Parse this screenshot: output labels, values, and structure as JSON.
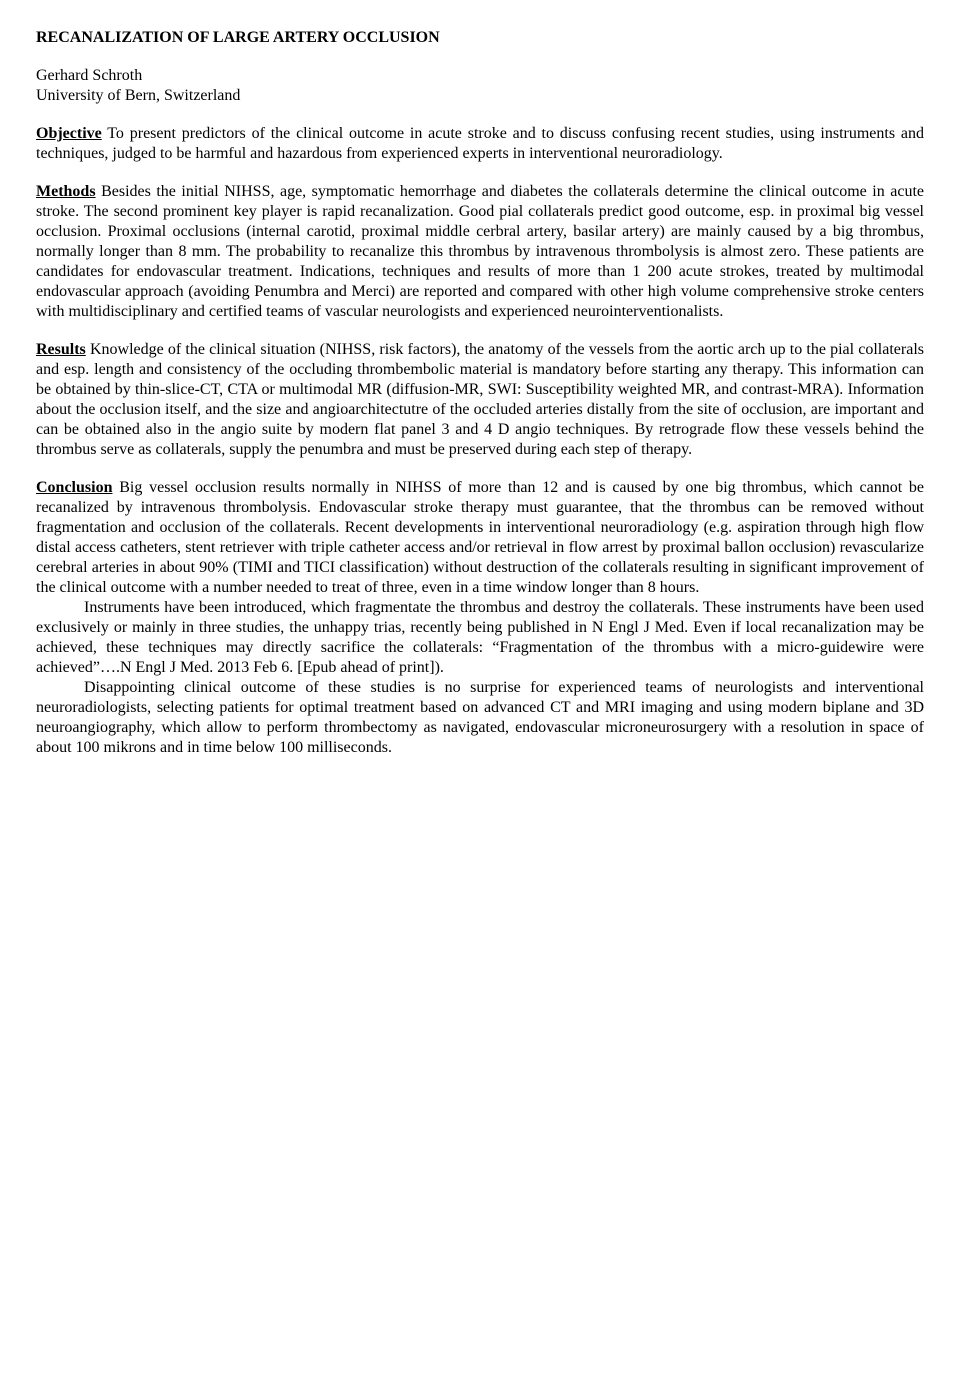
{
  "title": "RECANALIZATION OF LARGE ARTERY OCCLUSION",
  "author": "Gerhard Schroth",
  "affiliation": "University of Bern, Switzerland",
  "sections": {
    "objective": {
      "label": "Objective",
      "text": " To present predictors of the clinical outcome in acute stroke and to discuss confusing recent studies, using instruments and techniques, judged to be harmful and hazardous from experienced experts in interventional neuroradiology."
    },
    "methods": {
      "label": "Methods",
      "text": " Besides the initial NIHSS, age, symptomatic hemorrhage and diabetes the collaterals determine the clinical outcome in acute stroke. The second prominent key player is rapid recanalization. Good pial collaterals predict good outcome, esp. in proximal big vessel occlusion. Proximal occlusions (internal carotid, proximal middle cerbral artery, basilar artery) are mainly caused by a big thrombus, normally longer than 8 mm. The probability to recanalize this thrombus by intravenous thrombolysis is almost zero. These patients are candidates for endovascular treatment. Indications, techniques and results of more than 1 200 acute strokes, treated by multimodal endovascular approach (avoiding Penumbra and Merci) are reported and compared with other high volume comprehensive stroke centers with multidisciplinary and certified teams of vascular neurologists and experienced neurointerventionalists."
    },
    "results": {
      "label": "Results",
      "text": " Knowledge of the clinical situation (NIHSS, risk factors), the anatomy of the vessels from the aortic arch up to the pial collaterals and esp. length and consistency of the occluding thrombembolic material is mandatory before starting any therapy. This information can be obtained by thin-slice-CT, CTA or multimodal MR (diffusion-MR, SWI: Susceptibility weighted MR, and contrast-MRA). Information about the occlusion itself, and the size and angioarchitectutre of the occluded arteries distally from the site of occlusion, are important and can be obtained also in the angio suite by modern flat panel 3 and 4 D angio techniques. By retrograde flow these vessels behind the thrombus serve as collaterals, supply the penumbra and must be preserved during each step of therapy."
    },
    "conclusion": {
      "label": "Conclusion",
      "p1": " Big vessel occlusion results normally in NIHSS of more than 12 and is caused by one big thrombus, which cannot be recanalized by intravenous thrombolysis. Endovascular stroke therapy must guarantee, that the thrombus can be removed without fragmentation and occlusion of the collaterals. Recent developments in interventional neuroradiology (e.g. aspiration through high flow distal access catheters, stent retriever with triple catheter access and/or retrieval in flow arrest by proximal ballon occlusion) revascularize cerebral arteries in about 90% (TIMI and TICI classification) without destruction of the collaterals resulting in significant improvement of the clinical outcome with a number needed to treat of three, even in a time window longer than 8 hours.",
      "p2": "Instruments have been introduced, which fragmentate the thrombus and destroy the collaterals. These instruments have been used exclusively or mainly in three studies, the unhappy trias, recently being published in N Engl J Med.  Even if local recanalization may be achieved, these techniques may directly sacrifice the collaterals: “Fragmentation of the thrombus with a micro-guidewire were achieved”….N Engl J Med. 2013 Feb 6. [Epub ahead of print]).",
      "p3": "Disappointing clinical outcome of these studies is no surprise for experienced teams of neurologists and interventional neuroradiologists, selecting patients for optimal treatment based on advanced CT and MRI imaging and using modern biplane and 3D neuroangiography, which allow to perform thrombectomy as navigated, endovascular microneurosurgery with a resolution in space of about 100 mikrons and in time below 100 milliseconds."
    }
  }
}
